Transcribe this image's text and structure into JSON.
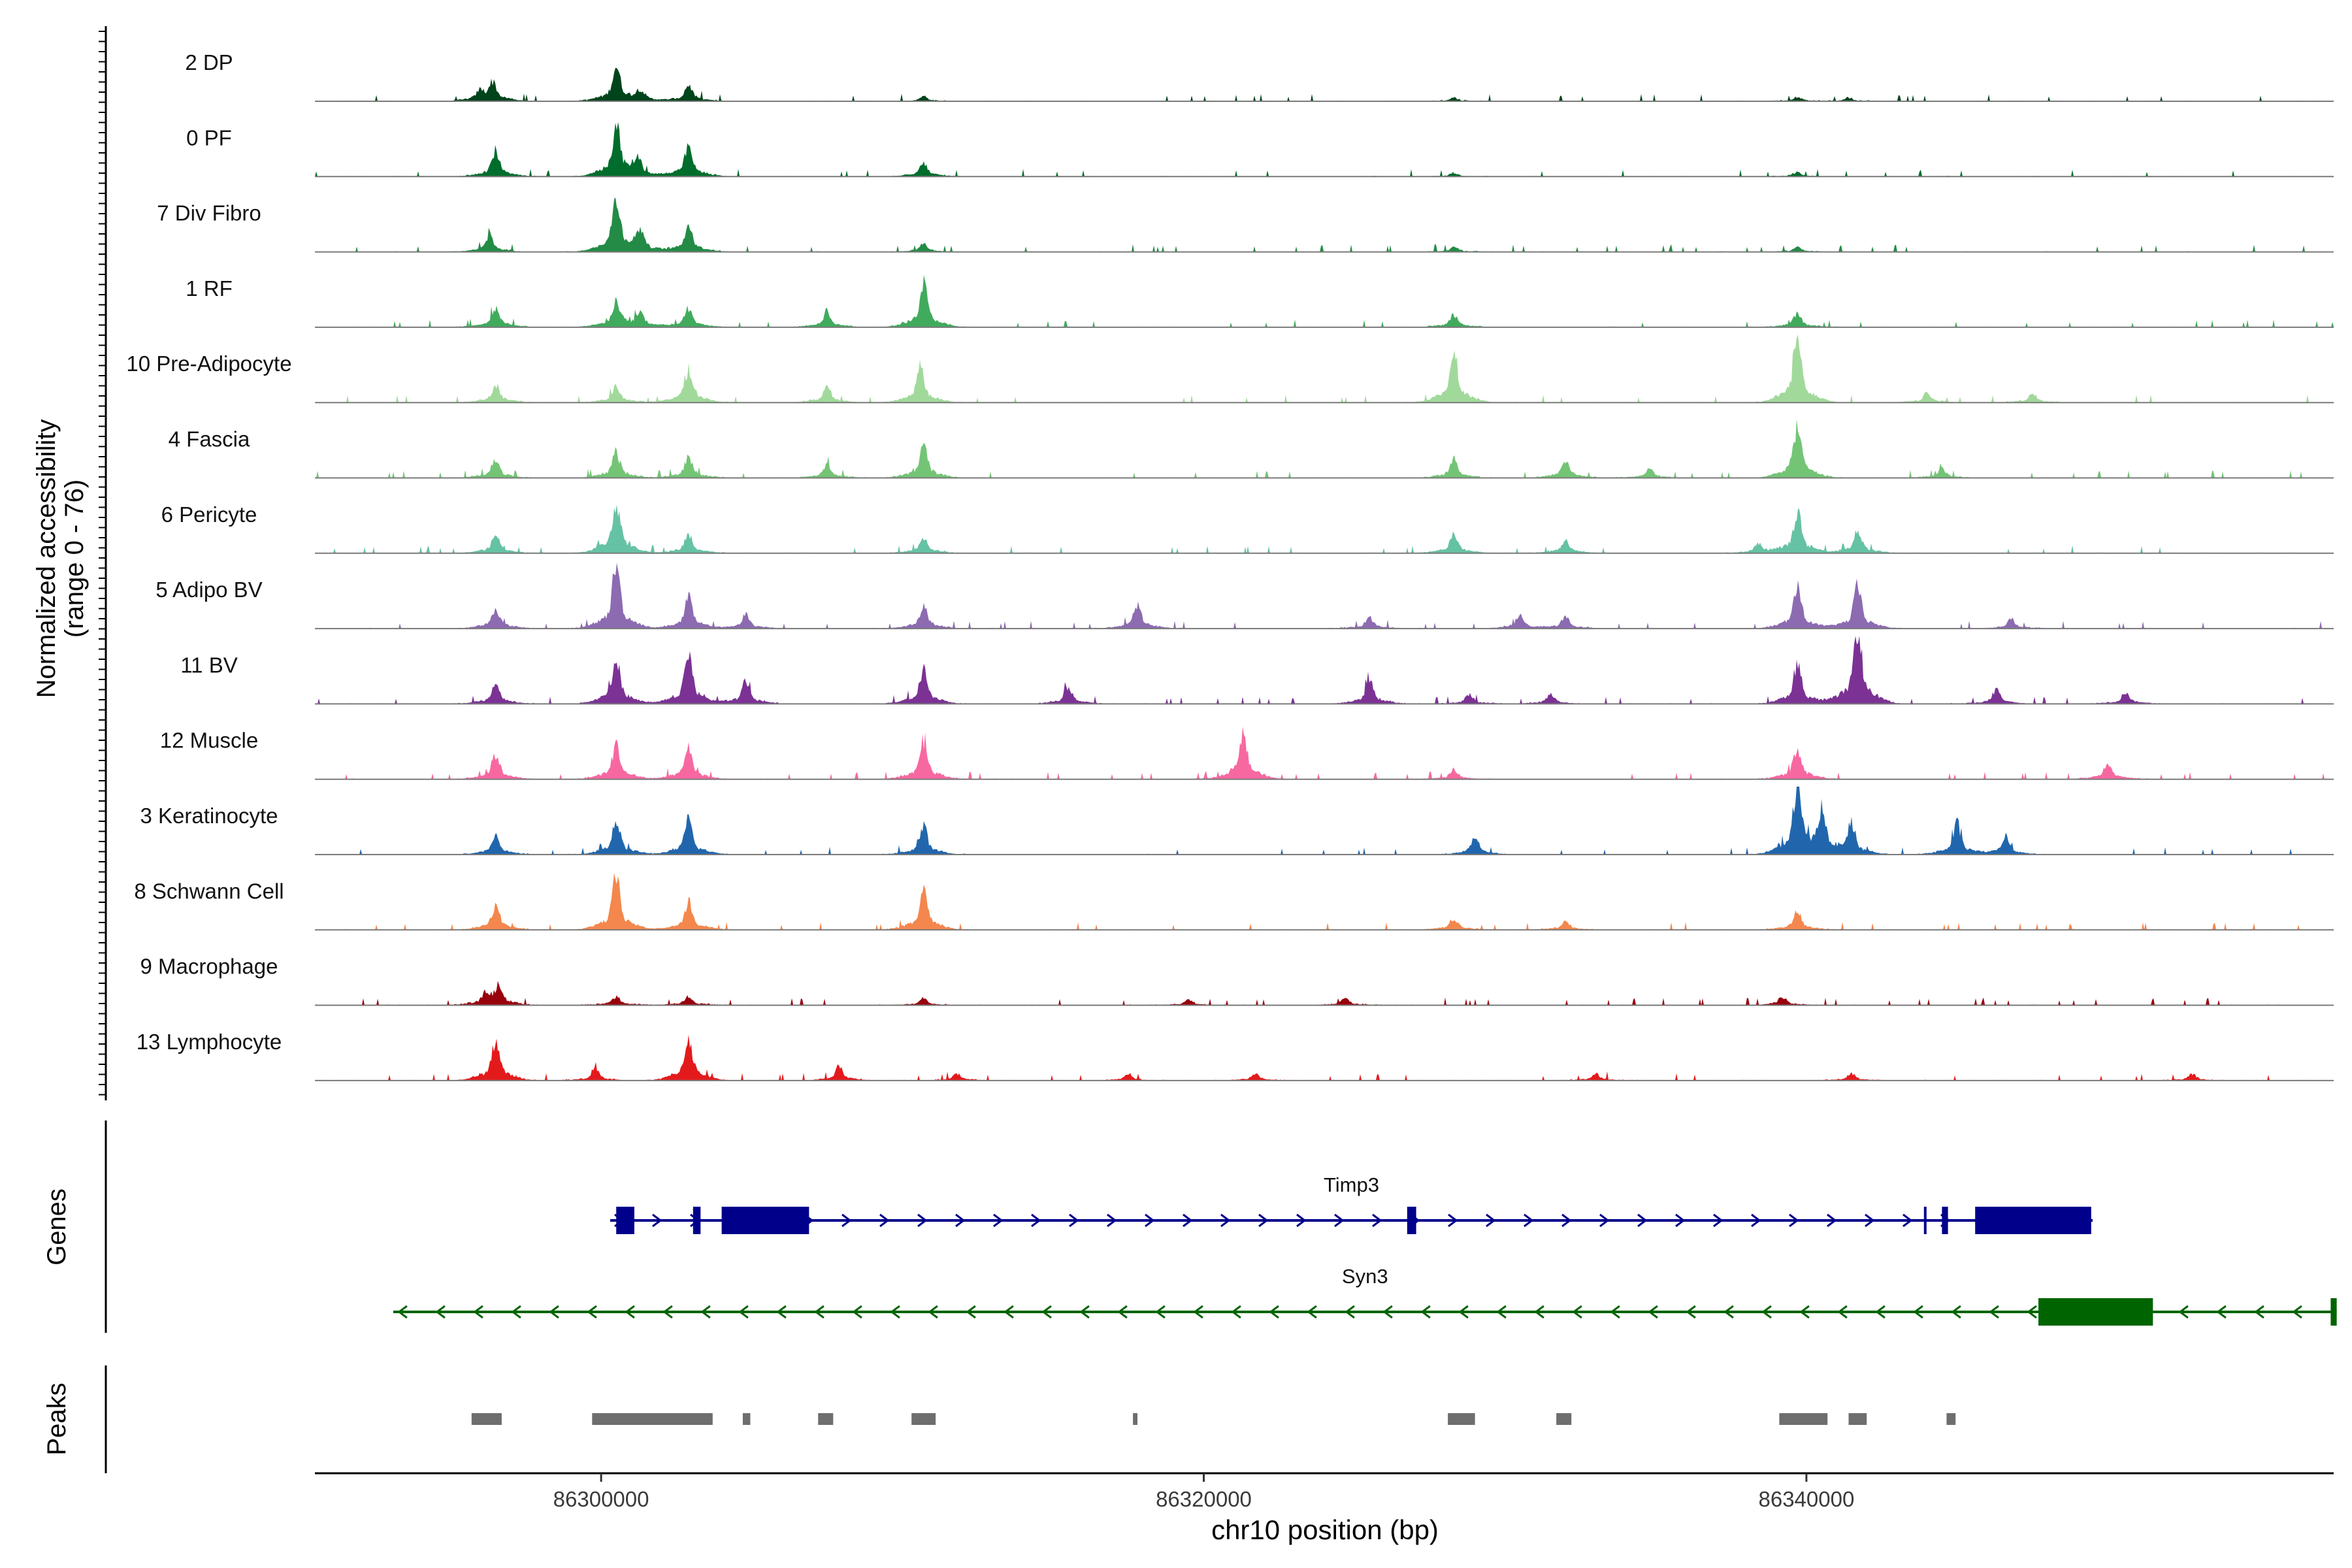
{
  "chart_data": {
    "type": "area",
    "title": "",
    "ylabel_line1": "Normalized accessibility",
    "ylabel_line2": "(range 0 - 76)",
    "ylim": [
      0,
      76
    ],
    "xlabel": "chr10 position (bp)",
    "xlim": [
      86290500,
      86357500
    ],
    "xticks": [
      86300000,
      86320000,
      86340000
    ],
    "xtick_labels": [
      "86300000",
      "86320000",
      "86340000"
    ],
    "tracks": [
      {
        "label": "2 DP",
        "color": "#00441b",
        "peaks": [
          [
            86296000,
            8
          ],
          [
            86296400,
            16
          ],
          [
            86300500,
            30
          ],
          [
            86301300,
            9
          ],
          [
            86302900,
            14
          ],
          [
            86310700,
            4
          ],
          [
            86328300,
            3
          ],
          [
            86339700,
            4
          ],
          [
            86341400,
            3
          ]
        ]
      },
      {
        "label": "0 PF",
        "color": "#006d2c",
        "peaks": [
          [
            86296500,
            22
          ],
          [
            86300500,
            44
          ],
          [
            86301200,
            14
          ],
          [
            86302900,
            26
          ],
          [
            86310700,
            12
          ],
          [
            86328300,
            3
          ],
          [
            86339700,
            4
          ]
        ]
      },
      {
        "label": "7 Div Fibro",
        "color": "#238b45",
        "peaks": [
          [
            86296300,
            14
          ],
          [
            86300500,
            46
          ],
          [
            86301300,
            18
          ],
          [
            86302900,
            24
          ],
          [
            86310700,
            7
          ],
          [
            86328300,
            4
          ],
          [
            86339700,
            4
          ]
        ]
      },
      {
        "label": "1 RF",
        "color": "#41ab5d",
        "peaks": [
          [
            86296500,
            18
          ],
          [
            86300500,
            22
          ],
          [
            86301300,
            12
          ],
          [
            86302900,
            16
          ],
          [
            86307500,
            14
          ],
          [
            86310700,
            38
          ],
          [
            86328300,
            11
          ],
          [
            86339700,
            12
          ]
        ]
      },
      {
        "label": "10 Pre-Adipocyte",
        "color": "#a1d99b",
        "peaks": [
          [
            86296500,
            16
          ],
          [
            86300500,
            14
          ],
          [
            86302900,
            30
          ],
          [
            86307500,
            14
          ],
          [
            86310600,
            30
          ],
          [
            86328300,
            46
          ],
          [
            86339700,
            60
          ],
          [
            86344000,
            8
          ],
          [
            86347500,
            8
          ]
        ]
      },
      {
        "label": "4 Fascia",
        "color": "#74c476",
        "peaks": [
          [
            86296500,
            16
          ],
          [
            86300500,
            22
          ],
          [
            86302900,
            18
          ],
          [
            86307500,
            12
          ],
          [
            86310700,
            28
          ],
          [
            86328300,
            16
          ],
          [
            86332000,
            16
          ],
          [
            86334800,
            8
          ],
          [
            86339700,
            46
          ],
          [
            86344500,
            8
          ]
        ]
      },
      {
        "label": "6 Pericyte",
        "color": "#66c2a4",
        "peaks": [
          [
            86296500,
            16
          ],
          [
            86300500,
            46
          ],
          [
            86302900,
            16
          ],
          [
            86310700,
            14
          ],
          [
            86328300,
            16
          ],
          [
            86332000,
            12
          ],
          [
            86338400,
            8
          ],
          [
            86339700,
            36
          ],
          [
            86341700,
            20
          ]
        ]
      },
      {
        "label": "5 Adipo BV",
        "color": "#8c6bb1",
        "peaks": [
          [
            86296500,
            18
          ],
          [
            86300500,
            56
          ],
          [
            86302900,
            26
          ],
          [
            86304800,
            12
          ],
          [
            86310700,
            20
          ],
          [
            86317800,
            20
          ],
          [
            86325500,
            10
          ],
          [
            86330500,
            12
          ],
          [
            86332000,
            10
          ],
          [
            86339700,
            36
          ],
          [
            86341700,
            36
          ],
          [
            86346800,
            8
          ]
        ]
      },
      {
        "label": "11 BV",
        "color": "#7b3294",
        "peaks": [
          [
            86296500,
            18
          ],
          [
            86300500,
            42
          ],
          [
            86302900,
            44
          ],
          [
            86304800,
            20
          ],
          [
            86310700,
            30
          ],
          [
            86315500,
            14
          ],
          [
            86325500,
            20
          ],
          [
            86328800,
            8
          ],
          [
            86331500,
            8
          ],
          [
            86339700,
            36
          ],
          [
            86341700,
            70
          ],
          [
            86346300,
            12
          ],
          [
            86350600,
            10
          ]
        ]
      },
      {
        "label": "12 Muscle",
        "color": "#f768a1",
        "peaks": [
          [
            86296500,
            22
          ],
          [
            86300500,
            30
          ],
          [
            86302900,
            26
          ],
          [
            86310700,
            34
          ],
          [
            86321300,
            42
          ],
          [
            86328300,
            8
          ],
          [
            86339700,
            28
          ],
          [
            86350000,
            14
          ]
        ]
      },
      {
        "label": "3 Keratinocyte",
        "color": "#2166ac",
        "peaks": [
          [
            86296500,
            16
          ],
          [
            86300500,
            30
          ],
          [
            86302900,
            30
          ],
          [
            86310700,
            24
          ],
          [
            86329000,
            14
          ],
          [
            86339700,
            62
          ],
          [
            86340500,
            34
          ],
          [
            86341500,
            26
          ],
          [
            86345000,
            26
          ],
          [
            86346600,
            16
          ]
        ]
      },
      {
        "label": "8 Schwann Cell",
        "color": "#f4874d",
        "peaks": [
          [
            86296500,
            22
          ],
          [
            86300500,
            46
          ],
          [
            86302900,
            24
          ],
          [
            86310700,
            34
          ],
          [
            86328300,
            10
          ],
          [
            86332000,
            8
          ],
          [
            86339700,
            16
          ]
        ]
      },
      {
        "label": "9 Macrophage",
        "color": "#99000d",
        "peaks": [
          [
            86296200,
            10
          ],
          [
            86296600,
            16
          ],
          [
            86300500,
            8
          ],
          [
            86302900,
            8
          ],
          [
            86310700,
            6
          ],
          [
            86319500,
            5
          ],
          [
            86324700,
            6
          ],
          [
            86339200,
            7
          ]
        ]
      },
      {
        "label": "13 Lymphocyte",
        "color": "#e31a1c",
        "peaks": [
          [
            86296500,
            36
          ],
          [
            86299800,
            10
          ],
          [
            86302900,
            38
          ],
          [
            86307900,
            12
          ],
          [
            86311800,
            6
          ],
          [
            86317500,
            6
          ],
          [
            86321700,
            6
          ],
          [
            86333000,
            6
          ],
          [
            86341500,
            6
          ],
          [
            86352800,
            6
          ]
        ]
      }
    ],
    "genes_label": "Genes",
    "genes": [
      {
        "name": "Timp3",
        "strand": "+",
        "color": "#00008b",
        "start": 86300300,
        "end": 86349500,
        "exons": [
          [
            86300500,
            86301100
          ],
          [
            86303050,
            86303300
          ],
          [
            86304000,
            86306900
          ],
          [
            86326750,
            86327050
          ],
          [
            86343900,
            86343950
          ],
          [
            86344500,
            86344700
          ],
          [
            86345600,
            86349450
          ]
        ]
      },
      {
        "name": "Syn3",
        "strand": "-",
        "color": "#006400",
        "start": 86293100,
        "end": 86357600,
        "exons": [
          [
            86347700,
            86351500
          ],
          [
            86357400,
            86357600
          ]
        ]
      }
    ],
    "peaks_label": "Peaks",
    "peak_color": "#6e6e6e",
    "peaks": [
      [
        86295700,
        86296700
      ],
      [
        86299700,
        86303700
      ],
      [
        86304700,
        86304950
      ],
      [
        86307200,
        86307700
      ],
      [
        86310300,
        86311100
      ],
      [
        86317650,
        86317800
      ],
      [
        86328100,
        86329000
      ],
      [
        86331700,
        86332200
      ],
      [
        86339100,
        86340700
      ],
      [
        86341400,
        86342000
      ],
      [
        86344650,
        86344950
      ]
    ]
  }
}
